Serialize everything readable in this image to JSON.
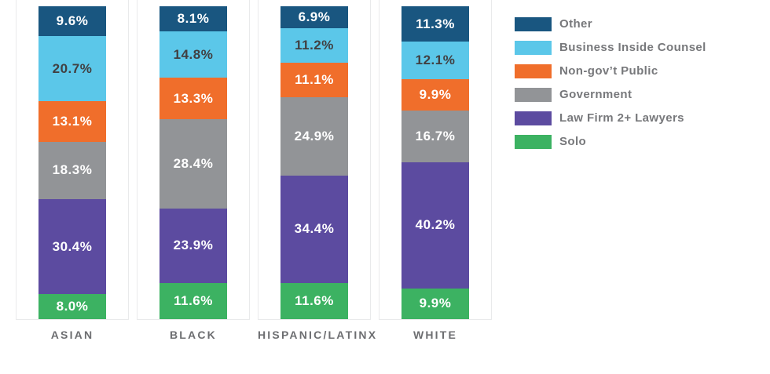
{
  "chart_data": {
    "type": "bar",
    "variant": "stacked-vertical-100pct",
    "title": "",
    "xlabel": "",
    "ylabel": "",
    "ylim": [
      0,
      100
    ],
    "grid": false,
    "legend_position": "right",
    "stack_order": "top-to-bottom",
    "categories": [
      "ASIAN",
      "BLACK",
      "HISPANIC/LATINX",
      "WHITE"
    ],
    "series": [
      {
        "name": "Other",
        "color": "#195680",
        "label_color": "#ffffff",
        "values": [
          9.6,
          8.1,
          6.9,
          11.3
        ],
        "labels": [
          "9.6%",
          "8.1%",
          "6.9%",
          "11.3%"
        ]
      },
      {
        "name": "Business Inside Counsel",
        "color": "#5bc7e9",
        "label_color": "#414042",
        "values": [
          20.7,
          14.8,
          11.2,
          12.1
        ],
        "labels": [
          "20.7%",
          "14.8%",
          "11.2%",
          "12.1%"
        ]
      },
      {
        "name": "Non-gov’t Public",
        "color": "#f06e2b",
        "label_color": "#ffffff",
        "values": [
          13.1,
          13.3,
          11.1,
          9.9
        ],
        "labels": [
          "13.1%",
          "13.3%",
          "11.1%",
          "9.9%"
        ]
      },
      {
        "name": "Government",
        "color": "#929497",
        "label_color": "#ffffff",
        "values": [
          18.3,
          28.4,
          24.9,
          16.7
        ],
        "labels": [
          "18.3%",
          "28.4%",
          "24.9%",
          "16.7%"
        ]
      },
      {
        "name": "Law Firm 2+ Lawyers",
        "color": "#5c4ba0",
        "label_color": "#ffffff",
        "values": [
          30.4,
          23.9,
          34.4,
          40.2
        ],
        "labels": [
          "30.4%",
          "23.9%",
          "34.4%",
          "40.2%"
        ]
      },
      {
        "name": "Solo",
        "color": "#3cb262",
        "label_color": "#ffffff",
        "values": [
          8.0,
          11.6,
          11.6,
          9.9
        ],
        "labels": [
          "8.0%",
          "11.6%",
          "11.6%",
          "9.9%"
        ]
      }
    ],
    "colors": {
      "column_border": "#e9eaeb",
      "axis_label_text": "#6d6e71",
      "legend_text": "#77787b"
    }
  }
}
